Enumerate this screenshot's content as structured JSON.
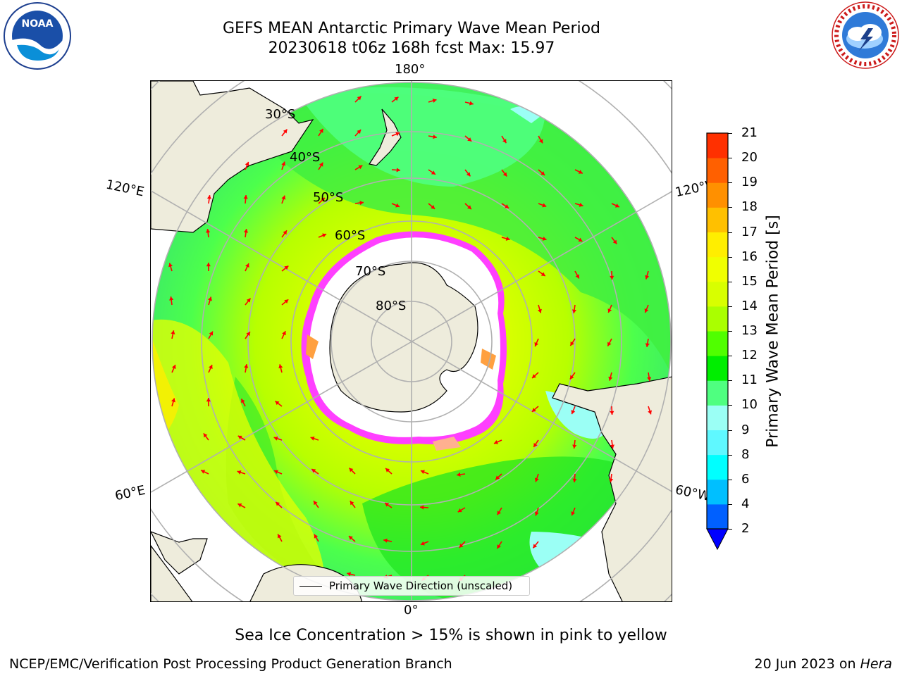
{
  "title": {
    "line1": "GEFS MEAN Antarctic Primary Wave Mean Period",
    "line2": "20230618 t06z 168h fcst   Max: 15.97"
  },
  "logos": {
    "left": {
      "text": "NOAA",
      "ring_text": "NATIONAL OCEANIC AND ATMOSPHERIC ADMINISTRATION · U.S. DEPARTMENT OF COMMERCE"
    },
    "right": {
      "ring_text": "NATIONAL WEATHER SERVICE"
    }
  },
  "map": {
    "projection": "south-polar-stereographic",
    "longitude_labels": {
      "top": "180°",
      "bottom": "0°",
      "upper_left": "120°E",
      "lower_left": "60°E",
      "upper_right": "120°W",
      "lower_right": "60°W"
    },
    "latitude_labels": [
      "30°S",
      "40°S",
      "50°S",
      "60°S",
      "70°S",
      "80°S"
    ],
    "colors": {
      "land": "#eeecdc",
      "ocean_low": "#9bfff5",
      "ice_edge": "#ff3fff",
      "arrows": "#ff0000",
      "grid": "#b0b0b0"
    },
    "legend": {
      "label": "Primary Wave Direction (unscaled)"
    }
  },
  "colorbar": {
    "label": "Primary Wave Mean Period [s]",
    "ticks": [
      "2",
      "4",
      "6",
      "8",
      "9",
      "10",
      "11",
      "12",
      "13",
      "14",
      "15",
      "16",
      "17",
      "18",
      "19",
      "20",
      "21"
    ],
    "colors": [
      "#0060ff",
      "#00bfff",
      "#00ffff",
      "#5ff8ff",
      "#9bfff5",
      "#4fff80",
      "#00ee00",
      "#50ff00",
      "#aaff00",
      "#d8ff00",
      "#f0ff00",
      "#ffee00",
      "#ffc000",
      "#ff9000",
      "#ff6000",
      "#ff3000",
      "#ff0000"
    ],
    "extend_color": "#0000ff"
  },
  "caption": "Sea Ice Concentration > 15% is shown in pink to yellow",
  "footer": {
    "left": "NCEP/EMC/Verification Post Processing Product Generation Branch",
    "right_prefix": "20 Jun 2023 on ",
    "right_italic": "Hera"
  }
}
